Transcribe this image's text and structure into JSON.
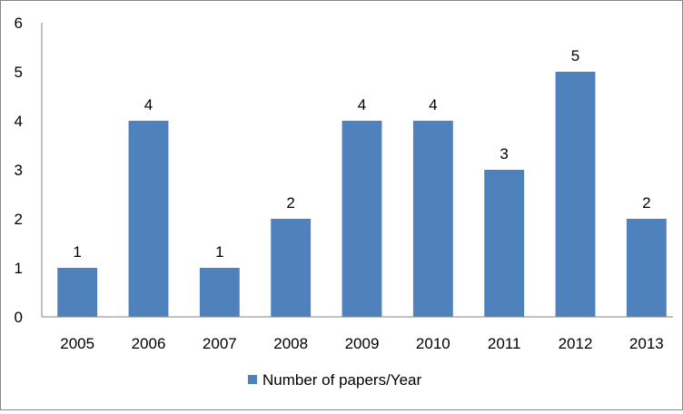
{
  "chart_data": {
    "type": "bar",
    "categories": [
      "2005",
      "2006",
      "2007",
      "2008",
      "2009",
      "2010",
      "2011",
      "2012",
      "2013"
    ],
    "series": [
      {
        "name": "Number of papers/Year",
        "values": [
          1,
          4,
          1,
          2,
          4,
          4,
          3,
          5,
          2
        ],
        "color": "#4F81BD"
      }
    ],
    "y_ticks": [
      "0",
      "1",
      "2",
      "3",
      "4",
      "5",
      "6"
    ],
    "data_labels": [
      "1",
      "4",
      "1",
      "2",
      "4",
      "4",
      "3",
      "5",
      "2"
    ],
    "ylim": [
      0,
      6
    ],
    "grid": false,
    "legend_position": "bottom",
    "title": "",
    "xlabel": "",
    "ylabel": ""
  }
}
